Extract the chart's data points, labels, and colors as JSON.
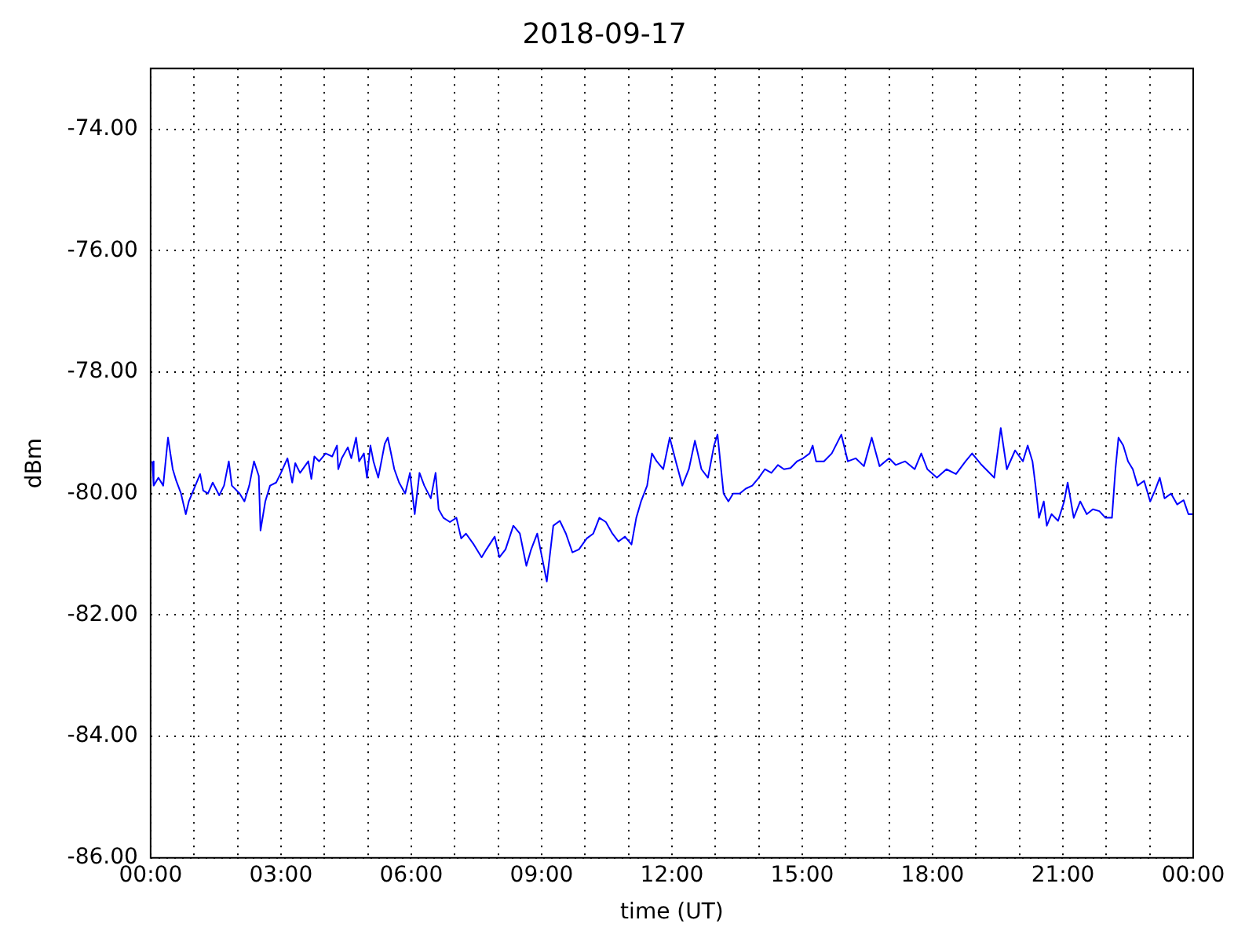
{
  "chart_data": {
    "type": "line",
    "title": "2018-09-17",
    "xlabel": "time (UT)",
    "ylabel": "dBm",
    "grid": true,
    "legend": false,
    "xlim": [
      0,
      24
    ],
    "xticks": [
      {
        "value": 0,
        "label": "00:00"
      },
      {
        "value": 1,
        "label": null
      },
      {
        "value": 2,
        "label": null
      },
      {
        "value": 3,
        "label": "03:00"
      },
      {
        "value": 4,
        "label": null
      },
      {
        "value": 5,
        "label": null
      },
      {
        "value": 6,
        "label": "06:00"
      },
      {
        "value": 7,
        "label": null
      },
      {
        "value": 8,
        "label": null
      },
      {
        "value": 9,
        "label": "09:00"
      },
      {
        "value": 10,
        "label": null
      },
      {
        "value": 11,
        "label": null
      },
      {
        "value": 12,
        "label": "12:00"
      },
      {
        "value": 13,
        "label": null
      },
      {
        "value": 14,
        "label": null
      },
      {
        "value": 15,
        "label": "15:00"
      },
      {
        "value": 16,
        "label": null
      },
      {
        "value": 17,
        "label": null
      },
      {
        "value": 18,
        "label": "18:00"
      },
      {
        "value": 19,
        "label": null
      },
      {
        "value": 20,
        "label": null
      },
      {
        "value": 21,
        "label": "21:00"
      },
      {
        "value": 22,
        "label": null
      },
      {
        "value": 23,
        "label": null
      },
      {
        "value": 24,
        "label": "00:00"
      }
    ],
    "ylim": [
      -86,
      -73
    ],
    "yticks": [
      {
        "value": -86,
        "label": "-86.00"
      },
      {
        "value": -84,
        "label": "-84.00"
      },
      {
        "value": -82,
        "label": "-82.00"
      },
      {
        "value": -80,
        "label": "-80.00"
      },
      {
        "value": -78,
        "label": "-78.00"
      },
      {
        "value": -76,
        "label": "-76.00"
      },
      {
        "value": -74,
        "label": "-74.00"
      }
    ],
    "x": [
      0.04,
      0.07,
      0.18,
      0.29,
      0.4,
      0.51,
      0.59,
      0.7,
      0.81,
      0.88,
      1.03,
      1.14,
      1.21,
      1.32,
      1.43,
      1.58,
      1.69,
      1.8,
      1.87,
      2.05,
      2.16,
      2.27,
      2.38,
      2.49,
      2.53,
      2.64,
      2.75,
      2.89,
      3.0,
      3.15,
      3.26,
      3.33,
      3.44,
      3.63,
      3.7,
      3.77,
      3.88,
      4.03,
      4.18,
      4.29,
      4.32,
      4.4,
      4.54,
      4.62,
      4.73,
      4.8,
      4.91,
      4.98,
      5.06,
      5.13,
      5.24,
      5.39,
      5.46,
      5.61,
      5.72,
      5.86,
      5.97,
      6.08,
      6.19,
      6.3,
      6.45,
      6.56,
      6.63,
      6.74,
      6.89,
      7.04,
      7.15,
      7.26,
      7.44,
      7.62,
      7.73,
      7.92,
      8.03,
      8.17,
      8.35,
      8.5,
      8.65,
      8.76,
      8.9,
      9.01,
      9.12,
      9.27,
      9.42,
      9.56,
      9.71,
      9.86,
      10.04,
      10.19,
      10.33,
      10.48,
      10.63,
      10.77,
      10.92,
      11.07,
      11.18,
      11.29,
      11.43,
      11.54,
      11.65,
      11.8,
      11.95,
      12.09,
      12.24,
      12.39,
      12.53,
      12.68,
      12.83,
      12.97,
      13.05,
      13.19,
      13.3,
      13.41,
      13.56,
      13.7,
      13.85,
      14.0,
      14.14,
      14.29,
      14.44,
      14.58,
      14.73,
      14.88,
      15.02,
      15.17,
      15.24,
      15.32,
      15.5,
      15.68,
      15.9,
      16.05,
      16.23,
      16.42,
      16.6,
      16.78,
      17.0,
      17.15,
      17.37,
      17.59,
      17.74,
      17.88,
      18.1,
      18.32,
      18.54,
      18.76,
      18.91,
      19.13,
      19.42,
      19.57,
      19.71,
      19.9,
      20.08,
      20.19,
      20.3,
      20.37,
      20.45,
      20.56,
      20.63,
      20.74,
      20.89,
      21.03,
      21.11,
      21.25,
      21.4,
      21.55,
      21.69,
      21.84,
      21.98,
      22.13,
      22.21,
      22.28,
      22.39,
      22.5,
      22.61,
      22.72,
      22.87,
      23.01,
      23.12,
      23.23,
      23.34,
      23.49,
      23.63,
      23.78,
      23.89,
      24.0
    ],
    "series": [
      {
        "color": "#0000ff",
        "values": [
          -79.47,
          -79.87,
          -79.74,
          -79.87,
          -79.08,
          -79.6,
          -79.79,
          -80.0,
          -80.34,
          -80.13,
          -79.87,
          -79.68,
          -79.95,
          -80.0,
          -79.82,
          -80.03,
          -79.87,
          -79.47,
          -79.87,
          -80.0,
          -80.13,
          -79.87,
          -79.47,
          -79.71,
          -80.61,
          -80.13,
          -79.87,
          -79.82,
          -79.66,
          -79.42,
          -79.82,
          -79.5,
          -79.66,
          -79.47,
          -79.76,
          -79.39,
          -79.47,
          -79.34,
          -79.39,
          -79.21,
          -79.6,
          -79.42,
          -79.24,
          -79.42,
          -79.08,
          -79.47,
          -79.34,
          -79.74,
          -79.21,
          -79.47,
          -79.74,
          -79.18,
          -79.08,
          -79.6,
          -79.82,
          -80.0,
          -79.66,
          -80.34,
          -79.66,
          -79.87,
          -80.08,
          -79.66,
          -80.26,
          -80.4,
          -80.47,
          -80.4,
          -80.74,
          -80.66,
          -80.84,
          -81.05,
          -80.92,
          -80.71,
          -81.05,
          -80.92,
          -80.53,
          -80.66,
          -81.19,
          -80.92,
          -80.66,
          -81.05,
          -81.45,
          -80.53,
          -80.45,
          -80.66,
          -80.97,
          -80.92,
          -80.74,
          -80.66,
          -80.4,
          -80.47,
          -80.66,
          -80.79,
          -80.71,
          -80.84,
          -80.4,
          -80.13,
          -79.87,
          -79.34,
          -79.47,
          -79.6,
          -79.08,
          -79.47,
          -79.87,
          -79.6,
          -79.13,
          -79.6,
          -79.74,
          -79.21,
          -79.03,
          -80.0,
          -80.13,
          -80.0,
          -80.0,
          -79.92,
          -79.87,
          -79.74,
          -79.6,
          -79.66,
          -79.53,
          -79.6,
          -79.58,
          -79.47,
          -79.42,
          -79.34,
          -79.21,
          -79.47,
          -79.47,
          -79.34,
          -79.03,
          -79.47,
          -79.42,
          -79.55,
          -79.08,
          -79.55,
          -79.42,
          -79.53,
          -79.47,
          -79.6,
          -79.34,
          -79.6,
          -79.74,
          -79.6,
          -79.68,
          -79.47,
          -79.34,
          -79.53,
          -79.74,
          -78.92,
          -79.6,
          -79.29,
          -79.47,
          -79.21,
          -79.47,
          -79.87,
          -80.4,
          -80.13,
          -80.53,
          -80.34,
          -80.45,
          -80.13,
          -79.82,
          -80.4,
          -80.13,
          -80.34,
          -80.26,
          -80.29,
          -80.4,
          -80.4,
          -79.6,
          -79.08,
          -79.21,
          -79.47,
          -79.6,
          -79.87,
          -79.79,
          -80.13,
          -79.95,
          -79.74,
          -80.08,
          -80.0,
          -80.18,
          -80.11,
          -80.34,
          -80.34
        ]
      }
    ]
  }
}
